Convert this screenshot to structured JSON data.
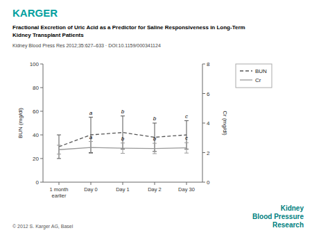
{
  "chart_data": {
    "type": "line",
    "header": "KARGER",
    "title": "Fractional Excretion of Uric Acid as a Predictor for Saline Responsiveness in Long-Term\nKidney Transplant Patients",
    "subtitle": "Kidney Blood Press Res 2012;35:627–633 · DOI:10.1159/000341124",
    "footer": "© 2012 S. Karger AG, Basel",
    "watermark": "Kidney\nBlood Pressure\nResearch",
    "categories": [
      "1 month\nearlier",
      "Day 0",
      "Day 1",
      "Day 2",
      "Day 30"
    ],
    "series": [
      {
        "name": "BUN",
        "color": "#555555",
        "line_style": "dashed",
        "values": [
          30,
          40,
          42,
          38,
          40
        ],
        "errors": [
          10,
          15,
          14,
          12,
          12
        ],
        "annotations": [
          null,
          "a",
          "b",
          "b",
          "c"
        ]
      },
      {
        "name": "Cr",
        "color": "#999999",
        "line_style": "solid",
        "axis": "y2",
        "values": [
          2.2,
          2.35,
          2.3,
          2.28,
          2.32
        ],
        "errors": [
          0.3,
          0.4,
          0.35,
          0.35,
          0.35
        ],
        "annotations": [
          null,
          "a",
          "b",
          "b",
          "c"
        ]
      }
    ],
    "y_label": "BUN (mg/dl)",
    "y2_label": "Cr (mg/dl)",
    "ylim": [
      0,
      100
    ],
    "yticks": [
      0,
      20,
      40,
      60,
      80,
      100
    ],
    "y2lim": [
      0,
      8
    ],
    "y2ticks": [
      0,
      2,
      4,
      6,
      8
    ],
    "grid": false,
    "legend": "right"
  }
}
